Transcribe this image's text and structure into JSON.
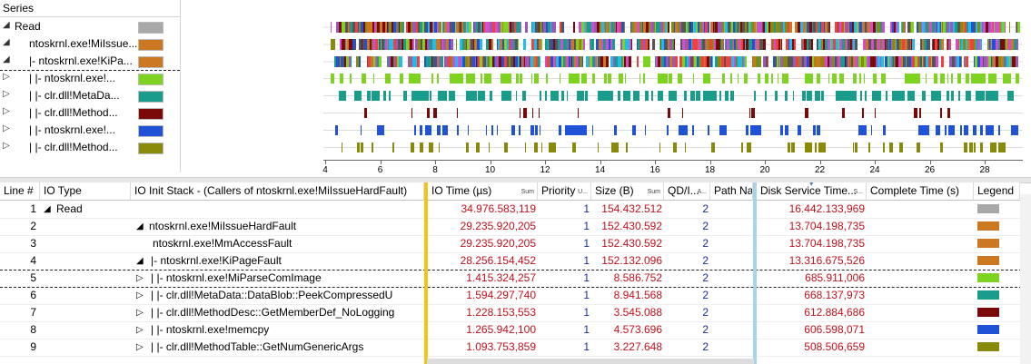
{
  "series_panel": {
    "header": "Series",
    "rows": [
      {
        "toggle": "◢",
        "label": "Read",
        "indent": 0,
        "color": "#a8a8a8"
      },
      {
        "toggle": "◢",
        "label": "ntoskrnl.exe!MiIssue...",
        "indent": 1,
        "color": "#cc7722"
      },
      {
        "toggle": "◢",
        "label": "|- ntoskrnl.exe!KiPa...",
        "indent": 1,
        "color": "#cc7722"
      },
      {
        "toggle": "▷",
        "label": "|  |- ntoskrnl.exe!...",
        "indent": 1,
        "color": "#7ed321"
      },
      {
        "toggle": "▷",
        "label": "|  |- clr.dll!MetaDa...",
        "indent": 1,
        "color": "#1a9c8c"
      },
      {
        "toggle": "▷",
        "label": "|  |- clr.dll!Method...",
        "indent": 1,
        "color": "#7a0a0a"
      },
      {
        "toggle": "▷",
        "label": "|  |- ntoskrnl.exe!...",
        "indent": 1,
        "color": "#1f52d6"
      },
      {
        "toggle": "▷",
        "label": "|  |- clr.dll!Method...",
        "indent": 1,
        "color": "#8a8a0a"
      }
    ]
  },
  "chart": {
    "axis_ticks": [
      "4",
      "6",
      "8",
      "10",
      "12",
      "14",
      "16",
      "18",
      "20",
      "22",
      "24",
      "26",
      "28"
    ],
    "tracks": [
      {
        "type": "multi",
        "density": 0.93
      },
      {
        "type": "multi",
        "density": 0.9
      },
      {
        "type": "multi",
        "density": 0.9
      },
      {
        "type": "single",
        "color": "#7ed321",
        "density": 0.45
      },
      {
        "type": "single",
        "color": "#1a9c8c",
        "density": 0.55
      },
      {
        "type": "single",
        "color": "#7a0a0a",
        "density": 0.12
      },
      {
        "type": "single",
        "color": "#1f52d6",
        "density": 0.35
      },
      {
        "type": "single",
        "color": "#8a8a0a",
        "density": 0.3
      }
    ],
    "multi_palette": [
      "#7ed321",
      "#1a9c8c",
      "#7a0a0a",
      "#1f52d6",
      "#8a8a0a",
      "#d04fd0",
      "#cc7722",
      "#22bbee",
      "#555555",
      "#f04040",
      "#9b59b6"
    ]
  },
  "table": {
    "headers": {
      "line": "Line #",
      "io_type": "IO Type",
      "stack": "IO Init Stack - (Callers of ntoskrnl.exe!MiIssueHardFault)",
      "io_time": "IO Time (µs)",
      "io_time_sub": "Sum",
      "priority": "Priority",
      "priority_sub": "U...",
      "size": "Size (B)",
      "size_sub": "Sum",
      "qd": "QD/I...",
      "qd_sub": "A...",
      "path": "Path Nam",
      "disk": "Disk Service Time...",
      "disk_sub": "S...",
      "complete": "Complete Time (s)",
      "legend": "Legend"
    },
    "rows": [
      {
        "line": "1",
        "io_type": "Read",
        "io_toggle": "◢",
        "stack": "",
        "stack_toggle": "",
        "io_time": "34.976.583,119",
        "priority": "1",
        "size": "154.432.512",
        "qd": "2",
        "disk": "16.442.133,969",
        "color": "#a8a8a8"
      },
      {
        "line": "2",
        "io_type": "",
        "io_toggle": "",
        "stack": "ntoskrnl.exe!MiIssueHardFault",
        "stack_toggle": "◢",
        "io_time": "29.235.920,205",
        "priority": "1",
        "size": "152.430.592",
        "qd": "2",
        "disk": "13.704.198,735",
        "color": "#cc7722"
      },
      {
        "line": "3",
        "io_type": "",
        "io_toggle": "",
        "stack": "ntoskrnl.exe!MmAccessFault",
        "stack_toggle": "",
        "io_time": "29.235.920,205",
        "priority": "1",
        "size": "152.430.592",
        "qd": "2",
        "disk": "13.704.198,735",
        "color": "#cc7722"
      },
      {
        "line": "4",
        "io_type": "",
        "io_toggle": "",
        "stack": "|- ntoskrnl.exe!KiPageFault",
        "stack_toggle": "◢",
        "io_time": "28.256.154,452",
        "priority": "1",
        "size": "152.132.096",
        "qd": "2",
        "disk": "13.316.675,526",
        "color": "#cc7722"
      },
      {
        "line": "5",
        "io_type": "",
        "io_toggle": "",
        "stack": "|   |- ntoskrnl.exe!MiParseComImage",
        "stack_toggle": "▷",
        "io_time": "1.415.324,257",
        "priority": "1",
        "size": "8.586.752",
        "qd": "2",
        "disk": "685.911,006",
        "color": "#7ed321"
      },
      {
        "line": "6",
        "io_type": "",
        "io_toggle": "",
        "stack": "|   |- clr.dll!MetaData::DataBlob::PeekCompressedU",
        "stack_toggle": "▷",
        "io_time": "1.594.297,740",
        "priority": "1",
        "size": "8.941.568",
        "qd": "2",
        "disk": "668.137,973",
        "color": "#1a9c8c"
      },
      {
        "line": "7",
        "io_type": "",
        "io_toggle": "",
        "stack": "|   |- clr.dll!MethodDesc::GetMemberDef_NoLogging",
        "stack_toggle": "▷",
        "io_time": "1.228.153,553",
        "priority": "1",
        "size": "3.545.088",
        "qd": "2",
        "disk": "612.884,686",
        "color": "#7a0a0a"
      },
      {
        "line": "8",
        "io_type": "",
        "io_toggle": "",
        "stack": "|   |- ntoskrnl.exe!memcpy",
        "stack_toggle": "▷",
        "io_time": "1.265.942,100",
        "priority": "1",
        "size": "4.573.696",
        "qd": "2",
        "disk": "606.598,071",
        "color": "#1f52d6"
      },
      {
        "line": "9",
        "io_type": "",
        "io_toggle": "",
        "stack": "|   |- clr.dll!MethodTable::GetNumGenericArgs",
        "stack_toggle": "▷",
        "io_time": "1.093.753,859",
        "priority": "1",
        "size": "3.227.648",
        "qd": "2",
        "disk": "508.506,659",
        "color": "#8a8a0a"
      }
    ]
  }
}
